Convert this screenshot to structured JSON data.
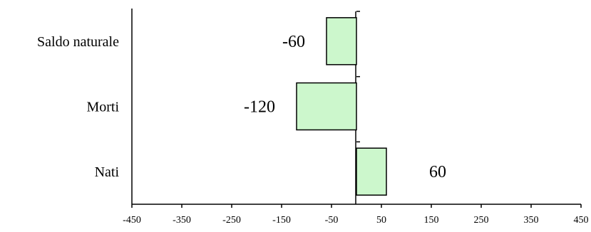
{
  "chart_data": {
    "type": "bar",
    "orientation": "horizontal",
    "categories": [
      "Saldo naturale",
      "Morti",
      "Nati"
    ],
    "values": [
      -60,
      -120,
      60
    ],
    "data_labels": [
      "-60",
      "-120",
      "60"
    ],
    "xlim": [
      -450,
      450
    ],
    "x_ticks": [
      "-450",
      "-350",
      "-250",
      "-150",
      "-50",
      "50",
      "150",
      "250",
      "350",
      "450"
    ],
    "grid": false,
    "legend": "none",
    "bar_color": "#ccf7cc",
    "title": "",
    "xlabel": "",
    "ylabel": ""
  }
}
